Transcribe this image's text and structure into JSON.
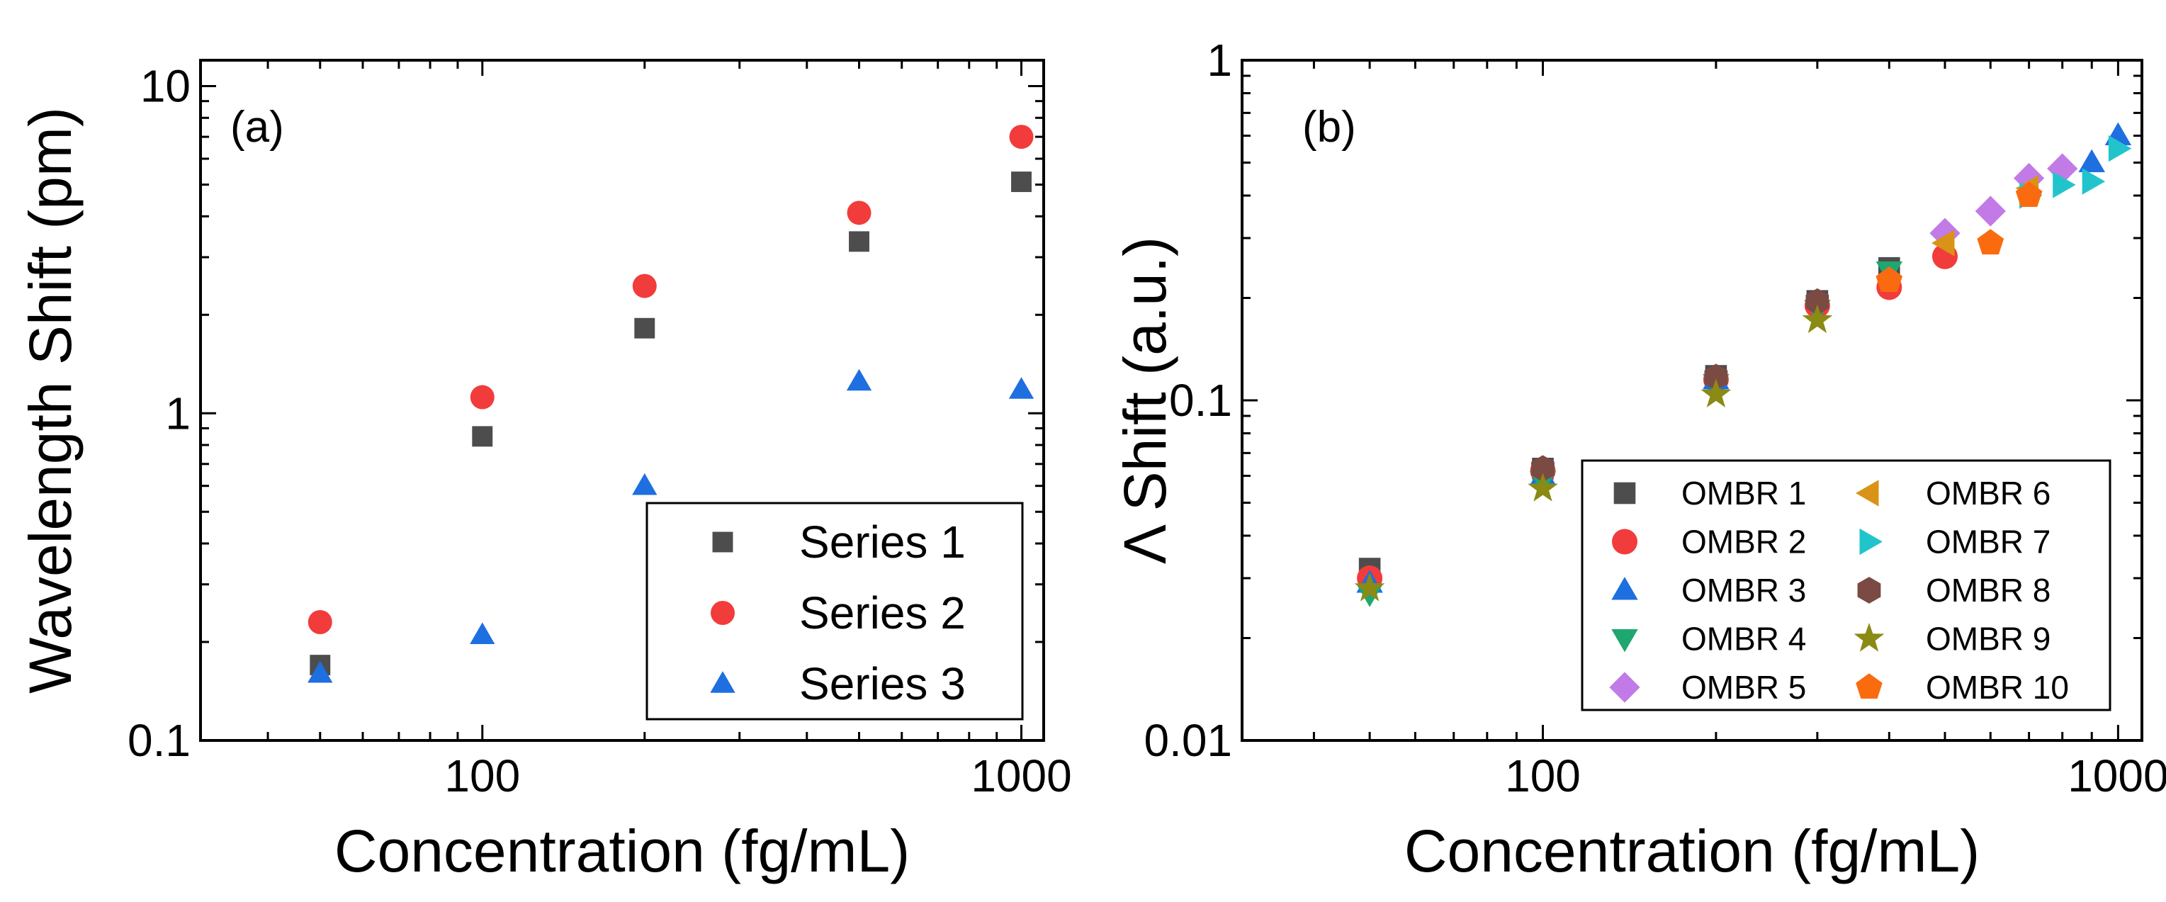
{
  "chart_data": [
    {
      "panel": "(a)",
      "type": "scatter",
      "xscale": "log",
      "yscale": "log",
      "xlim": [
        30,
        1100
      ],
      "ylim": [
        0.1,
        12
      ],
      "xlabel": "Concentration (fg/mL)",
      "ylabel": "Wavelength Shift (pm)",
      "xticks": [
        {
          "value": 100,
          "label": "100"
        },
        {
          "value": 1000,
          "label": "1000"
        }
      ],
      "yticks": [
        {
          "value": 0.1,
          "label": "0.1"
        },
        {
          "value": 1,
          "label": "1"
        },
        {
          "value": 10,
          "label": "10"
        }
      ],
      "legend_position": "bottom-right",
      "series": [
        {
          "name": "Series 1",
          "marker": "square",
          "color": "#4d4d4d",
          "x": [
            50,
            100,
            200,
            500,
            1000
          ],
          "y": [
            0.17,
            0.85,
            1.82,
            3.35,
            5.1
          ]
        },
        {
          "name": "Series 2",
          "marker": "circle",
          "color": "#f23b3b",
          "x": [
            50,
            100,
            200,
            500,
            1000
          ],
          "y": [
            0.23,
            1.12,
            2.45,
            4.1,
            7.0
          ]
        },
        {
          "name": "Series 3",
          "marker": "triangle-up",
          "color": "#1e6fe0",
          "x": [
            50,
            100,
            200,
            500,
            1000
          ],
          "y": [
            0.16,
            0.21,
            0.6,
            1.25,
            1.18
          ]
        }
      ]
    },
    {
      "panel": "(b)",
      "type": "scatter",
      "xscale": "log",
      "yscale": "log",
      "xlim": [
        30,
        1100
      ],
      "ylim": [
        0.01,
        1
      ],
      "xlabel": "Concentration (fg/mL)",
      "ylabel": "Λ Shift (a.u.)",
      "xticks": [
        {
          "value": 100,
          "label": "100"
        },
        {
          "value": 1000,
          "label": "1000"
        }
      ],
      "yticks": [
        {
          "value": 0.01,
          "label": "0.01"
        },
        {
          "value": 0.1,
          "label": "0.1"
        },
        {
          "value": 1,
          "label": "1"
        }
      ],
      "legend_position": "bottom-right",
      "series": [
        {
          "name": "OMBR 1",
          "marker": "square",
          "color": "#4d4d4d",
          "x": [
            50,
            100,
            200,
            300,
            400
          ],
          "y": [
            0.032,
            0.063,
            0.118,
            0.196,
            0.245
          ]
        },
        {
          "name": "OMBR 2",
          "marker": "circle",
          "color": "#f23b3b",
          "x": [
            50,
            100,
            200,
            300,
            400,
            500
          ],
          "y": [
            0.03,
            0.062,
            0.115,
            0.19,
            0.215,
            0.265
          ]
        },
        {
          "name": "OMBR 3",
          "marker": "triangle-up",
          "color": "#1e6fe0",
          "x": [
            50,
            100,
            200,
            900,
            1000
          ],
          "y": [
            0.029,
            0.06,
            0.115,
            0.5,
            0.6
          ]
        },
        {
          "name": "OMBR 4",
          "marker": "triangle-down",
          "color": "#1fa770",
          "x": [
            50,
            100,
            200,
            300,
            400
          ],
          "y": [
            0.027,
            0.058,
            0.112,
            0.185,
            0.24
          ]
        },
        {
          "name": "OMBR 5",
          "marker": "diamond",
          "color": "#c27ae6",
          "x": [
            500,
            600,
            700,
            800
          ],
          "y": [
            0.31,
            0.36,
            0.45,
            0.48
          ]
        },
        {
          "name": "OMBR 6",
          "marker": "triangle-left",
          "color": "#d99316",
          "x": [
            500,
            700
          ],
          "y": [
            0.29,
            0.42
          ]
        },
        {
          "name": "OMBR 7",
          "marker": "triangle-right",
          "color": "#22c4cc",
          "x": [
            700,
            800,
            900,
            1000
          ],
          "y": [
            0.4,
            0.43,
            0.44,
            0.55
          ]
        },
        {
          "name": "OMBR 8",
          "marker": "hexagon",
          "color": "#7b4a43",
          "x": [
            100,
            200,
            300
          ],
          "y": [
            0.063,
            0.117,
            0.195
          ]
        },
        {
          "name": "OMBR 9",
          "marker": "star",
          "color": "#8a8a14",
          "x": [
            50,
            100,
            200,
            300
          ],
          "y": [
            0.028,
            0.055,
            0.104,
            0.172
          ]
        },
        {
          "name": "OMBR 10",
          "marker": "pentagon",
          "color": "#fa6b10",
          "x": [
            400,
            600,
            700
          ],
          "y": [
            0.225,
            0.29,
            0.4
          ]
        }
      ]
    }
  ]
}
